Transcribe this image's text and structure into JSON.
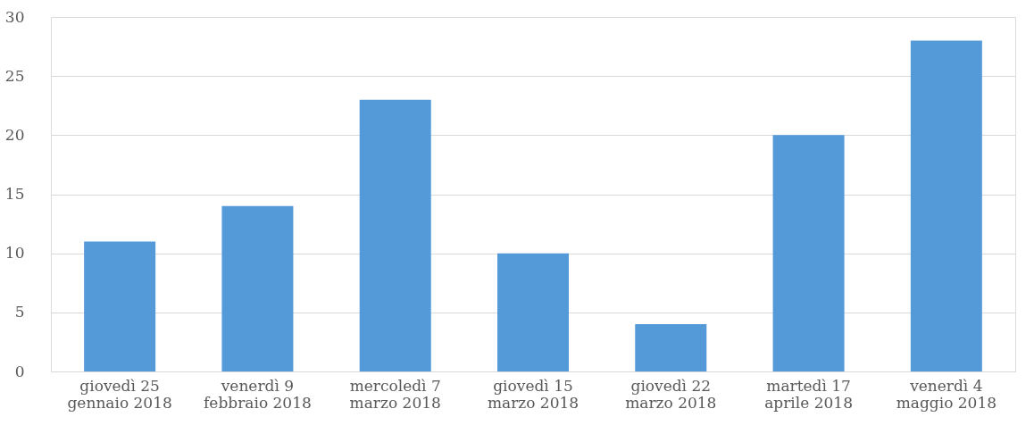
{
  "chart_data": {
    "type": "bar",
    "categories": [
      "giovedì 25\ngennaio 2018",
      "venerdì 9\nfebbraio 2018",
      "mercoledì 7\nmarzo 2018",
      "giovedì 15\nmarzo 2018",
      "giovedì 22\nmarzo 2018",
      "martedì 17\naprile 2018",
      "venerdì 4\nmaggio 2018"
    ],
    "values": [
      11,
      14,
      23,
      10,
      4,
      20,
      28
    ],
    "color": "#5499d8",
    "ylim": [
      0,
      30
    ],
    "yticks": [
      0,
      5,
      10,
      15,
      20,
      25,
      30
    ],
    "grid": "y"
  }
}
